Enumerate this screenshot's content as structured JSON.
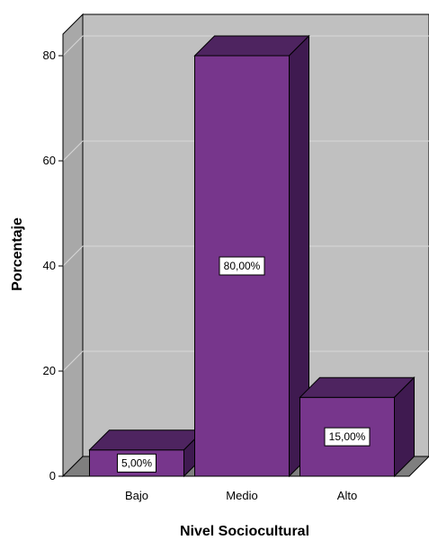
{
  "chart_data": {
    "type": "bar",
    "categories": [
      "Bajo",
      "Medio",
      "Alto"
    ],
    "values": [
      5,
      80,
      15
    ],
    "data_labels": [
      "5,00%",
      "80,00%",
      "15,00%"
    ],
    "xlabel": "Nivel Sociocultural",
    "ylabel": "Porcentaje",
    "ylim": [
      0,
      80
    ],
    "yticks": [
      0,
      20,
      40,
      60,
      80
    ],
    "grid": true,
    "style": "3d",
    "colors": {
      "bar_front": "#77368c",
      "bar_top": "#4e2460",
      "bar_side": "#3f1a50",
      "plot_background": "#c0c0c0",
      "back_wall": "#c0c0c0",
      "side_wall": "#a8a8a8",
      "floor": "#7f7f7f",
      "gridline": "#d8d8d8"
    }
  }
}
